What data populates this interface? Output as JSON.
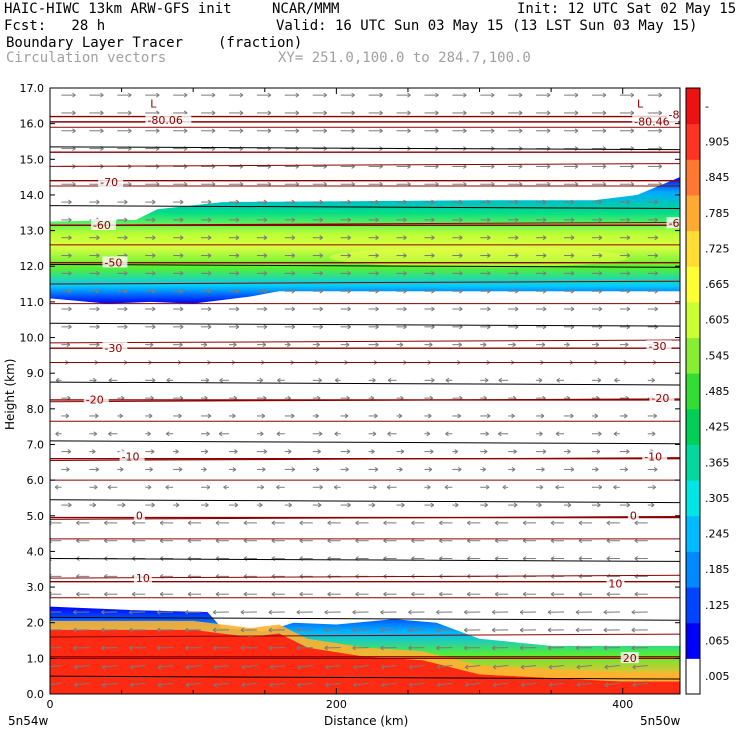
{
  "header": {
    "model": "HAIC-HIWC 13km ARW-GFS init",
    "org": "NCAR/MMM",
    "init": "Init: 12 UTC Sat 02 May 15",
    "fcst": "Fcst:   28 h",
    "valid": "Valid: 16 UTC Sun 03 May 15 (13 LST Sun 03 May 15)",
    "field": "Boundary Layer Tracer",
    "units": "(fraction)",
    "vectors": "Circulation vectors",
    "xsec": "XY= 251.0,100.0 to 284.7,100.0"
  },
  "chart_data": {
    "type": "heatmap",
    "xlabel": "Distance (km)",
    "ylabel": "Height (km)",
    "xlim": [
      0,
      440
    ],
    "ylim": [
      0,
      17
    ],
    "xticks": [
      0,
      200,
      400
    ],
    "yticks": [
      "0.0",
      "1.0",
      "2.0",
      "3.0",
      "4.0",
      "5.0",
      "6.0",
      "7.0",
      "8.0",
      "9.0",
      "10.0",
      "11.0",
      "12.0",
      "13.0",
      "14.0",
      "15.0",
      "16.0",
      "17.0"
    ],
    "endpoint_left": "5n54w",
    "endpoint_right": "5n50w",
    "colorbar": {
      "labels": [
        ".005",
        ".065",
        ".125",
        ".185",
        ".245",
        ".305",
        ".365",
        ".425",
        ".485",
        ".545",
        ".605",
        ".665",
        ".725",
        ".785",
        ".845",
        ".905",
        "-"
      ],
      "colors": [
        "#ffffff",
        "#0000ff",
        "#0044ff",
        "#0088ff",
        "#00bbff",
        "#00e5e5",
        "#00d9a0",
        "#00d055",
        "#33dd33",
        "#88ee33",
        "#ccff33",
        "#ffff33",
        "#ffdd33",
        "#ffaa33",
        "#ff7733",
        "#ff3322",
        "#ee1111"
      ]
    },
    "upper_layer": {
      "bottom_profile": [
        [
          0,
          11.1
        ],
        [
          40,
          10.95
        ],
        [
          70,
          11.0
        ],
        [
          100,
          10.95
        ],
        [
          140,
          11.15
        ],
        [
          160,
          11.3
        ],
        [
          440,
          11.3
        ]
      ],
      "top_profile": [
        [
          0,
          13.25
        ],
        [
          60,
          13.3
        ],
        [
          75,
          13.6
        ],
        [
          120,
          13.8
        ],
        [
          300,
          13.85
        ],
        [
          380,
          13.85
        ],
        [
          410,
          14.0
        ],
        [
          440,
          14.5
        ]
      ],
      "peak_value": 0.845
    },
    "boundary_layer": {
      "top_profile": [
        [
          0,
          2.45
        ],
        [
          60,
          2.35
        ],
        [
          110,
          2.3
        ],
        [
          120,
          1.85
        ],
        [
          150,
          1.75
        ],
        [
          170,
          2.0
        ],
        [
          200,
          1.95
        ],
        [
          240,
          2.1
        ],
        [
          270,
          2.0
        ],
        [
          300,
          1.55
        ],
        [
          350,
          1.35
        ],
        [
          400,
          1.35
        ],
        [
          440,
          1.35
        ]
      ],
      "red_top_profile": [
        [
          0,
          1.8
        ],
        [
          100,
          1.8
        ],
        [
          140,
          1.6
        ],
        [
          160,
          1.7
        ],
        [
          180,
          1.3
        ],
        [
          220,
          1.05
        ],
        [
          260,
          0.95
        ],
        [
          300,
          0.55
        ],
        [
          350,
          0.45
        ],
        [
          400,
          0.35
        ],
        [
          440,
          0.35
        ]
      ],
      "peak_value": 1.0
    },
    "temperature_contours": [
      {
        "label": "-80.06",
        "y": 16.2
      },
      {
        "label": "-80.46",
        "y": 16.05
      },
      {
        "label": "-80",
        "y": 15.2
      },
      {
        "label": "-70",
        "y": 14.4
      },
      {
        "label": "-60",
        "y": 13.15
      },
      {
        "label": "-50",
        "y": 12.1
      },
      {
        "label": "-30",
        "y": 9.7
      },
      {
        "label": "-20",
        "y": 8.25
      },
      {
        "label": "-10",
        "y": 6.6
      },
      {
        "label": "0",
        "y": 4.95
      },
      {
        "label": "10",
        "y": 3.15
      },
      {
        "label": "20",
        "y": 1.0
      }
    ],
    "low_markers": [
      {
        "label": "L",
        "x": 70,
        "y": 16.45
      },
      {
        "label": "L",
        "x": 410,
        "y": 16.45
      }
    ],
    "contour_labels": [
      {
        "text": "-80.06",
        "x": 68,
        "y": 16.05
      },
      {
        "text": "-80.46",
        "x": 408,
        "y": 16.0
      },
      {
        "text": "-80",
        "x": 432,
        "y": 16.2
      },
      {
        "text": "-70",
        "x": 35,
        "y": 14.3
      },
      {
        "text": "-60",
        "x": 30,
        "y": 13.1
      },
      {
        "text": "-60",
        "x": 432,
        "y": 13.15
      },
      {
        "text": "-50",
        "x": 38,
        "y": 12.05
      },
      {
        "text": "-30",
        "x": 38,
        "y": 9.65
      },
      {
        "text": "-30",
        "x": 418,
        "y": 9.7
      },
      {
        "text": "-20",
        "x": 25,
        "y": 8.2
      },
      {
        "text": "-20",
        "x": 420,
        "y": 8.25
      },
      {
        "text": "-10",
        "x": 50,
        "y": 6.6
      },
      {
        "text": "-10",
        "x": 415,
        "y": 6.6
      },
      {
        "text": "0",
        "x": 60,
        "y": 4.95
      },
      {
        "text": "0",
        "x": 405,
        "y": 4.95
      },
      {
        "text": "10",
        "x": 60,
        "y": 3.2
      },
      {
        "text": "10",
        "x": 390,
        "y": 3.05
      },
      {
        "text": "20",
        "x": 400,
        "y": 0.95
      }
    ],
    "grid": false
  }
}
